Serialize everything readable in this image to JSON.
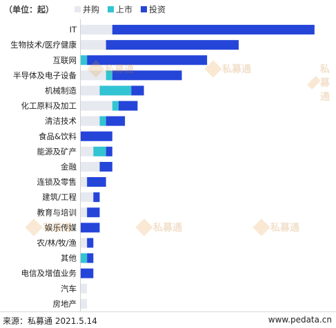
{
  "unit_label": "（单位：起）",
  "footer": {
    "source": "来源：私募通 2021.5.14",
    "site": "www.pedata.cn"
  },
  "watermark": {
    "text": "私募通"
  },
  "chart_data": {
    "type": "bar",
    "orientation": "horizontal",
    "stacked": true,
    "legend_position": "top-left",
    "grid": false,
    "categories": [
      "IT",
      "生物技术/医疗健康",
      "互联网",
      "半导体及电子设备",
      "机械制造",
      "化工原料及加工",
      "清洁技术",
      "食品&饮料",
      "能源及矿产",
      "金融",
      "连锁及零售",
      "建筑/工程",
      "教育与培训",
      "娱乐传媒",
      "农/林/牧/渔",
      "其他",
      "电信及增值业务",
      "汽车",
      "房地产"
    ],
    "series": [
      {
        "name": "并购",
        "color": "#e6e9ef",
        "values": [
          10,
          8,
          0,
          8,
          6,
          10,
          6,
          0,
          4,
          6,
          2,
          4,
          2,
          0,
          2,
          0,
          0,
          2,
          2
        ]
      },
      {
        "name": "上市",
        "color": "#33c4d3",
        "values": [
          0,
          0,
          2,
          2,
          10,
          2,
          2,
          0,
          4,
          0,
          0,
          0,
          0,
          0,
          0,
          2,
          0,
          0,
          0
        ]
      },
      {
        "name": "投资",
        "color": "#2545d9",
        "values": [
          64,
          42,
          38,
          22,
          4,
          6,
          6,
          10,
          2,
          4,
          6,
          2,
          4,
          6,
          2,
          2,
          4,
          0,
          0
        ]
      }
    ],
    "xlim": [
      0,
      76
    ]
  }
}
